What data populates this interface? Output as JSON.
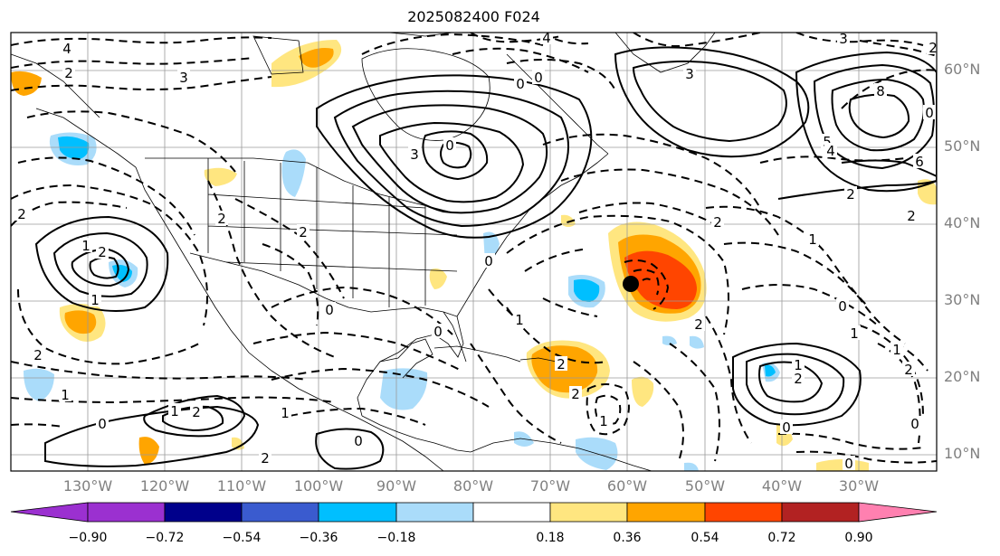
{
  "title": "2025082400 F024",
  "axes": {
    "lon_labels": [
      "130°W",
      "120°W",
      "110°W",
      "100°W",
      "90°W",
      "80°W",
      "70°W",
      "60°W",
      "50°W",
      "40°W",
      "30°W"
    ],
    "lat_labels": [
      "60°N",
      "50°N",
      "40°N",
      "30°N",
      "20°N",
      "10°N"
    ]
  },
  "colorbar": {
    "ticks": [
      "−0.90",
      "−0.72",
      "−0.54",
      "−0.36",
      "−0.18",
      "0.18",
      "0.36",
      "0.54",
      "0.72",
      "0.90"
    ],
    "colors": [
      "#9b30d0",
      "#00008b",
      "#3a5bcf",
      "#00bfff",
      "#aadcfa",
      "#ffffff",
      "#ffe680",
      "#ffa500",
      "#ff4500",
      "#b22222",
      "#ff80b0"
    ],
    "extend": "both"
  },
  "contour_labels": [
    "4",
    "2",
    "3",
    "0",
    "0",
    "3",
    "4",
    "3",
    "8",
    "2",
    "2",
    "2",
    "0",
    "3",
    "5",
    "4",
    "6",
    "2",
    "2",
    "2",
    "1",
    "2",
    "1",
    "0",
    "0",
    "2",
    "2",
    "1",
    "0",
    "1",
    "1",
    "2",
    "1",
    "2",
    "0",
    "1",
    "2",
    "0",
    "2",
    "1",
    "2",
    "0",
    "1",
    "2",
    "1",
    "0",
    "0",
    "2",
    "0",
    "1",
    "0"
  ],
  "marker": {
    "label": "storm center",
    "color": "#000000"
  }
}
